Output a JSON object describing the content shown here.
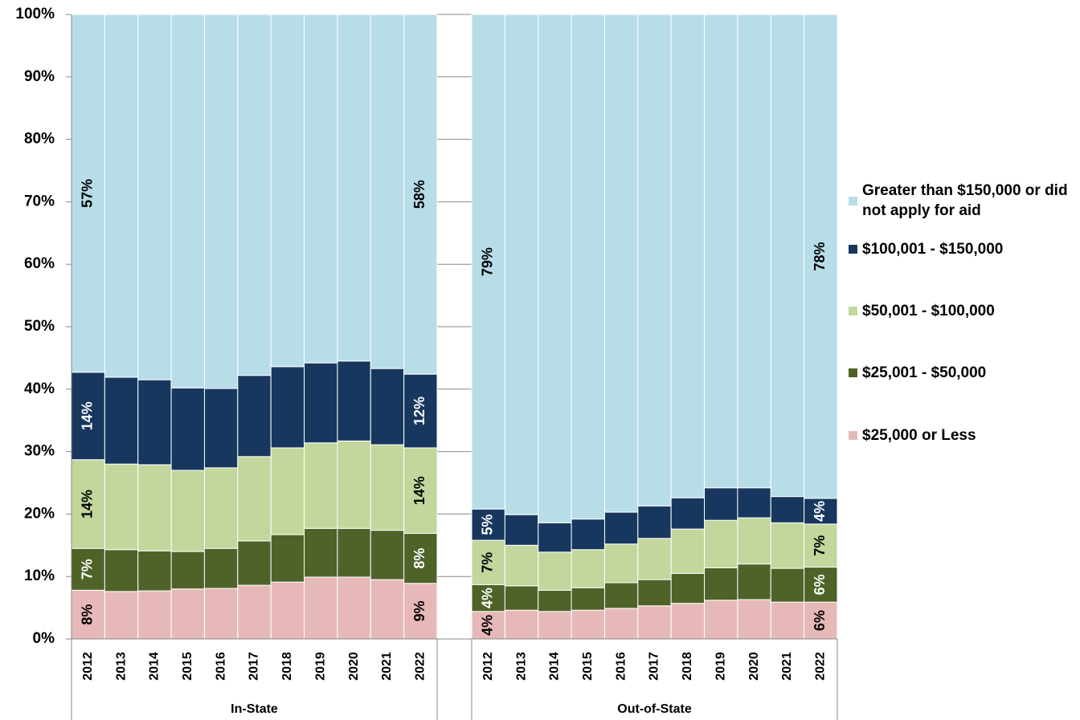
{
  "chart_data": {
    "type": "stacked_bar",
    "groups": [
      {
        "label": "In-State",
        "categories": [
          "2012",
          "2013",
          "2014",
          "2015",
          "2016",
          "2017",
          "2018",
          "2019",
          "2020",
          "2021",
          "2022"
        ]
      },
      {
        "label": "Out-of-State",
        "categories": [
          "2012",
          "2013",
          "2014",
          "2015",
          "2016",
          "2017",
          "2018",
          "2019",
          "2020",
          "2021",
          "2022"
        ]
      }
    ],
    "series": [
      {
        "name": "$25,000 or Less",
        "color": "#e6b9b8",
        "label_color": "#000000",
        "values": [
          7.8,
          7.6,
          7.7,
          8.0,
          8.1,
          8.6,
          9.1,
          9.9,
          9.9,
          9.5,
          8.9,
          4.4,
          4.6,
          4.4,
          4.6,
          4.9,
          5.3,
          5.7,
          6.2,
          6.3,
          5.9,
          5.9
        ],
        "value_labels": [
          "8%",
          null,
          null,
          null,
          null,
          null,
          null,
          null,
          null,
          null,
          "9%",
          "4%",
          null,
          null,
          null,
          null,
          null,
          null,
          null,
          null,
          null,
          "6%"
        ]
      },
      {
        "name": "$25,001 - $50,000",
        "color": "#4f6228",
        "label_color": "#ffffff",
        "values": [
          6.7,
          6.7,
          6.4,
          6.0,
          6.4,
          7.1,
          7.6,
          7.8,
          7.8,
          7.9,
          8.0,
          4.3,
          3.9,
          3.4,
          3.6,
          4.1,
          4.2,
          4.8,
          5.2,
          5.7,
          5.4,
          5.6
        ],
        "value_labels": [
          "7%",
          null,
          null,
          null,
          null,
          null,
          null,
          null,
          null,
          null,
          "8%",
          "4%",
          null,
          null,
          null,
          null,
          null,
          null,
          null,
          null,
          null,
          "6%"
        ]
      },
      {
        "name": "$50,001 - $100,000",
        "color": "#c3d69b",
        "label_color": "#000000",
        "values": [
          14.2,
          13.7,
          13.8,
          13.0,
          12.9,
          13.5,
          13.9,
          13.7,
          14.0,
          13.7,
          13.7,
          7.1,
          6.5,
          6.1,
          6.1,
          6.2,
          6.6,
          7.1,
          7.6,
          7.4,
          7.3,
          6.9
        ],
        "value_labels": [
          "14%",
          null,
          null,
          null,
          null,
          null,
          null,
          null,
          null,
          null,
          "14%",
          "7%",
          null,
          null,
          null,
          null,
          null,
          null,
          null,
          null,
          null,
          "7%"
        ]
      },
      {
        "name": "$100,001 - $150,000",
        "color": "#17375e",
        "label_color": "#ffffff",
        "values": [
          14.0,
          13.9,
          13.6,
          13.2,
          12.7,
          13.0,
          13.0,
          12.8,
          12.8,
          12.2,
          11.8,
          5.0,
          4.9,
          4.7,
          4.9,
          5.1,
          5.2,
          5.0,
          5.2,
          4.8,
          4.2,
          4.1
        ],
        "value_labels": [
          "14%",
          null,
          null,
          null,
          null,
          null,
          null,
          null,
          null,
          null,
          "12%",
          "5%",
          null,
          null,
          null,
          null,
          null,
          null,
          null,
          null,
          null,
          "4%"
        ]
      },
      {
        "name": "Greater than $150,000 or did not apply for aid",
        "color": "#b7dde8",
        "label_color": "#000000",
        "values": [
          57.3,
          58.1,
          58.5,
          59.8,
          59.9,
          57.8,
          56.4,
          55.8,
          55.5,
          56.7,
          57.6,
          79.2,
          80.1,
          81.4,
          80.8,
          79.7,
          78.7,
          77.4,
          75.8,
          75.8,
          77.2,
          77.5
        ],
        "value_labels": [
          "57%",
          null,
          null,
          null,
          null,
          null,
          null,
          null,
          null,
          null,
          "58%",
          "79%",
          null,
          null,
          null,
          null,
          null,
          null,
          null,
          null,
          null,
          "78%"
        ]
      }
    ],
    "ylim": [
      0,
      100
    ],
    "yticks": [
      {
        "value": 0,
        "label": "0%"
      },
      {
        "value": 10,
        "label": "10%"
      },
      {
        "value": 20,
        "label": "20%"
      },
      {
        "value": 30,
        "label": "30%"
      },
      {
        "value": 40,
        "label": "40%"
      },
      {
        "value": 50,
        "label": "50%"
      },
      {
        "value": 60,
        "label": "60%"
      },
      {
        "value": 70,
        "label": "70%"
      },
      {
        "value": 80,
        "label": "80%"
      },
      {
        "value": 90,
        "label": "90%"
      },
      {
        "value": 100,
        "label": "100%"
      }
    ],
    "grid": true,
    "legend": "right"
  }
}
